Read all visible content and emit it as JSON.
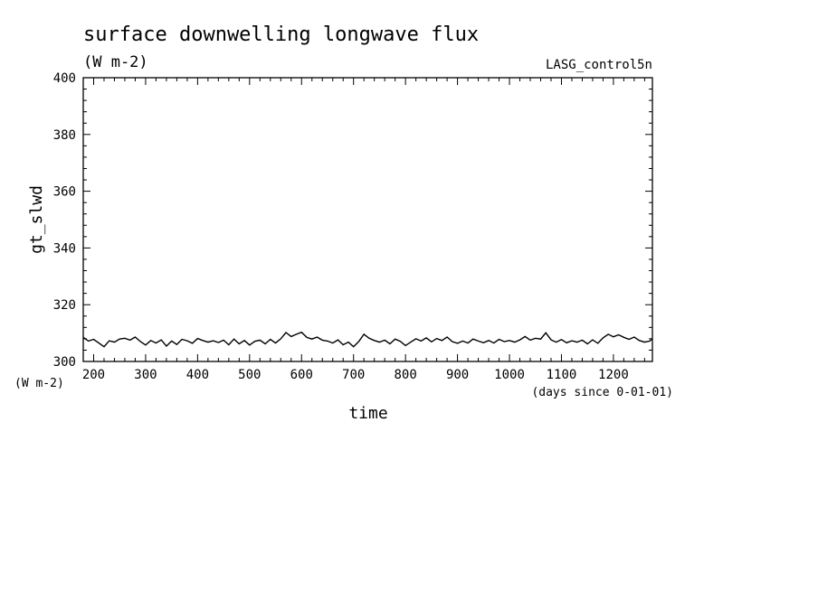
{
  "chart_data": {
    "type": "line",
    "title": "surface downwelling longwave flux",
    "title_units": "(W m-2)",
    "dataset_label": "LASG_control5n",
    "xlabel": "time",
    "x_units_note": "(days since 0-01-01)",
    "ylabel": "gt_slwd",
    "y_units_note": "(W m-2)",
    "xlim": [
      180,
      1275
    ],
    "ylim": [
      300,
      400
    ],
    "x_major_ticks": [
      200,
      300,
      400,
      500,
      600,
      700,
      800,
      900,
      1000,
      1100,
      1200
    ],
    "x_minor_step": 20,
    "y_major_ticks": [
      300,
      320,
      340,
      360,
      380,
      400
    ],
    "y_minor_step": 4,
    "grid": false,
    "line_color": "#000000",
    "series": [
      {
        "x": [
          180,
          190,
          200,
          210,
          220,
          230,
          240,
          250,
          260,
          270,
          280,
          290,
          300,
          310,
          320,
          330,
          340,
          350,
          360,
          370,
          380,
          390,
          400,
          410,
          420,
          430,
          440,
          450,
          460,
          470,
          480,
          490,
          500,
          510,
          520,
          530,
          540,
          550,
          560,
          570,
          580,
          590,
          600,
          610,
          620,
          630,
          640,
          650,
          660,
          670,
          680,
          690,
          700,
          710,
          720,
          730,
          740,
          750,
          760,
          770,
          780,
          790,
          800,
          810,
          820,
          830,
          840,
          850,
          860,
          870,
          880,
          890,
          900,
          910,
          920,
          930,
          940,
          950,
          960,
          970,
          980,
          990,
          1000,
          1010,
          1020,
          1030,
          1040,
          1050,
          1060,
          1070,
          1080,
          1090,
          1100,
          1110,
          1120,
          1130,
          1140,
          1150,
          1160,
          1170,
          1180,
          1190,
          1200,
          1210,
          1220,
          1230,
          1240,
          1250,
          1260,
          1270,
          1275
        ],
        "y": [
          308.5,
          307.2,
          307.8,
          306.5,
          305.2,
          307.3,
          306.8,
          307.9,
          308.2,
          307.5,
          308.6,
          307.0,
          305.8,
          307.4,
          306.5,
          307.6,
          305.4,
          307.2,
          306.0,
          307.8,
          307.3,
          306.4,
          308.1,
          307.4,
          306.8,
          307.3,
          306.7,
          307.5,
          305.9,
          307.9,
          306.2,
          307.4,
          305.8,
          307.1,
          307.5,
          306.2,
          307.8,
          306.5,
          308.0,
          310.2,
          308.8,
          309.6,
          310.3,
          308.5,
          307.9,
          308.6,
          307.5,
          307.2,
          306.5,
          307.6,
          305.9,
          306.8,
          305.2,
          307.0,
          309.6,
          308.2,
          307.4,
          306.8,
          307.5,
          306.2,
          307.9,
          307.1,
          305.6,
          306.8,
          308.0,
          307.2,
          308.3,
          306.9,
          308.1,
          307.4,
          308.6,
          307.0,
          306.4,
          307.2,
          306.5,
          307.9,
          307.2,
          306.6,
          307.4,
          306.5,
          307.8,
          307.0,
          307.4,
          306.8,
          307.6,
          308.8,
          307.5,
          308.2,
          307.9,
          310.1,
          307.6,
          306.8,
          307.7,
          306.6,
          307.3,
          306.8,
          307.5,
          306.2,
          307.6,
          306.4,
          308.3,
          309.6,
          308.7,
          309.4,
          308.5,
          307.8,
          308.6,
          307.4,
          306.8,
          307.2,
          308.1
        ]
      }
    ]
  }
}
